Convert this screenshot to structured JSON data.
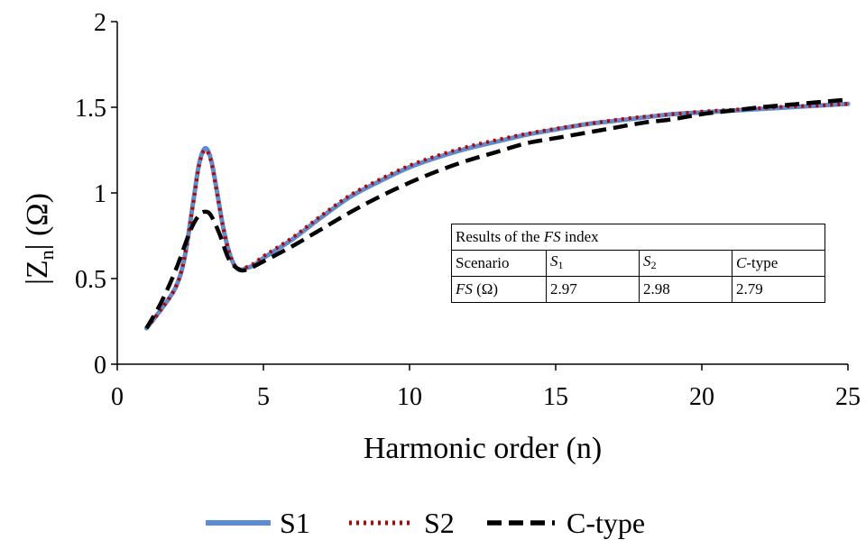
{
  "chart_data": {
    "type": "line",
    "xlabel": "Harmonic order (n)",
    "ylabel_main": "|Z",
    "ylabel_sub": "n",
    "ylabel_tail": "| (Ω)",
    "xlim": [
      0,
      25
    ],
    "ylim": [
      0,
      2
    ],
    "x_ticks": [
      0,
      5,
      10,
      15,
      20,
      25
    ],
    "y_ticks": [
      "0",
      "0.5",
      "1",
      "1.5",
      "2"
    ],
    "grid": false,
    "legend_position": "bottom",
    "series": [
      {
        "name": "S1",
        "color": "#5b8ed1",
        "style": "solid",
        "x": [
          1,
          1.5,
          2,
          2.3,
          2.6,
          2.8,
          3.0,
          3.2,
          3.4,
          3.6,
          3.8,
          4.0,
          4.2,
          4.4,
          4.7,
          5,
          6,
          7,
          8,
          9,
          10,
          11,
          12,
          13,
          14,
          15,
          16,
          17,
          18,
          19,
          20,
          21,
          22,
          23,
          24,
          25
        ],
        "values": [
          0.21,
          0.32,
          0.45,
          0.62,
          0.95,
          1.17,
          1.26,
          1.2,
          1.02,
          0.82,
          0.67,
          0.58,
          0.55,
          0.56,
          0.58,
          0.62,
          0.73,
          0.86,
          0.98,
          1.07,
          1.15,
          1.21,
          1.26,
          1.3,
          1.34,
          1.37,
          1.4,
          1.42,
          1.44,
          1.46,
          1.47,
          1.48,
          1.49,
          1.5,
          1.51,
          1.52
        ]
      },
      {
        "name": "S2",
        "color": "#c00000",
        "style": "dotted",
        "x": [
          1,
          1.5,
          2,
          2.3,
          2.6,
          2.8,
          3.0,
          3.2,
          3.4,
          3.6,
          3.8,
          4.0,
          4.2,
          4.4,
          4.7,
          5,
          6,
          7,
          8,
          9,
          10,
          11,
          12,
          13,
          14,
          15,
          16,
          17,
          18,
          19,
          20,
          21,
          22,
          23,
          24,
          25
        ],
        "values": [
          0.21,
          0.32,
          0.45,
          0.62,
          0.94,
          1.16,
          1.25,
          1.19,
          1.01,
          0.82,
          0.67,
          0.58,
          0.555,
          0.565,
          0.59,
          0.63,
          0.74,
          0.87,
          0.99,
          1.08,
          1.16,
          1.22,
          1.27,
          1.31,
          1.345,
          1.375,
          1.4,
          1.425,
          1.445,
          1.46,
          1.475,
          1.485,
          1.495,
          1.505,
          1.51,
          1.52
        ]
      },
      {
        "name": "C-type",
        "color": "#000000",
        "style": "dashed",
        "x": [
          1,
          1.5,
          2,
          2.5,
          2.8,
          3.0,
          3.2,
          3.5,
          3.8,
          4.1,
          4.4,
          5,
          6,
          7,
          8,
          9,
          10,
          11,
          12,
          13,
          14,
          15,
          16,
          17,
          18,
          19,
          20,
          21,
          22,
          23,
          24,
          25
        ],
        "values": [
          0.21,
          0.36,
          0.55,
          0.78,
          0.87,
          0.89,
          0.87,
          0.76,
          0.62,
          0.56,
          0.55,
          0.6,
          0.69,
          0.79,
          0.89,
          0.98,
          1.06,
          1.13,
          1.19,
          1.24,
          1.29,
          1.32,
          1.35,
          1.38,
          1.41,
          1.43,
          1.46,
          1.48,
          1.5,
          1.515,
          1.53,
          1.545
        ]
      }
    ]
  },
  "fs_table": {
    "title_prefix": "Results of the ",
    "title_italic": "FS",
    "title_suffix": " index",
    "row1": {
      "label": "Scenario",
      "s1_letter": "S",
      "s1_sub": "1",
      "s2_letter": "S",
      "s2_sub": "2",
      "ctype_italic": "C",
      "ctype_rest": "-type"
    },
    "row2": {
      "label_italic": "FS",
      "label_rest": " (Ω)",
      "s1": "2.97",
      "s2": "2.98",
      "ctype": "2.79"
    }
  }
}
